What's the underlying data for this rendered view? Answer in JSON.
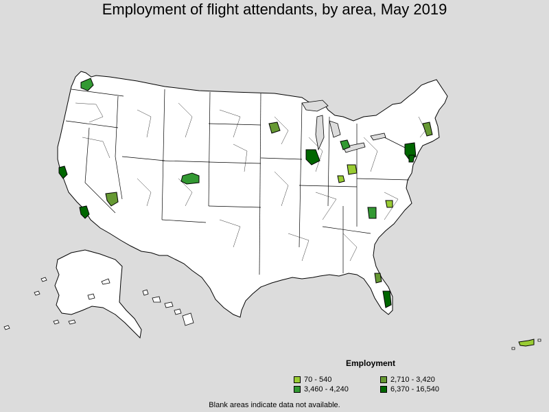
{
  "title": "Employment of flight attendants, by area, May 2019",
  "legend": {
    "title": "Employment",
    "items": [
      {
        "label": "70 - 540",
        "color": "#99cc33"
      },
      {
        "label": "2,710 - 3,420",
        "color": "#669933"
      },
      {
        "label": "3,460 - 4,240",
        "color": "#339933"
      },
      {
        "label": "6,370 - 16,540",
        "color": "#006600"
      }
    ]
  },
  "footnote": "Blank areas indicate data not available.",
  "colors": {
    "background": "#dcdcdc",
    "land": "#ffffff",
    "outline": "#000000"
  }
}
